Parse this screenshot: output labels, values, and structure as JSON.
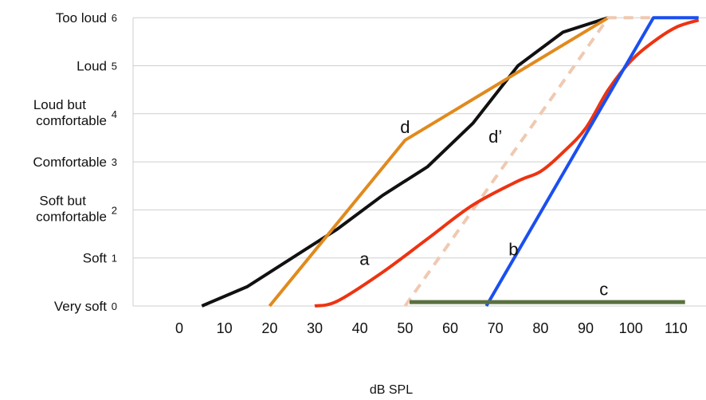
{
  "chart_data": {
    "type": "line",
    "title": "",
    "xlabel": "dB SPL",
    "ylabel": "",
    "xlim": [
      -10,
      115
    ],
    "ylim": [
      0,
      6
    ],
    "x_ticks": [
      "0",
      "10",
      "20",
      "30",
      "40",
      "50",
      "60",
      "70",
      "80",
      "90",
      "100",
      "110"
    ],
    "y_ticks": [
      "0",
      "1",
      "2",
      "3",
      "4",
      "5",
      "6"
    ],
    "y_categories": [
      {
        "value": 0,
        "label": "Very soft"
      },
      {
        "value": 1,
        "label": "Soft"
      },
      {
        "value": 2,
        "label": "Soft but\ncomfortable"
      },
      {
        "value": 3,
        "label": "Comfortable"
      },
      {
        "value": 4,
        "label": "Loud but\ncomfortable"
      },
      {
        "value": 5,
        "label": "Loud"
      },
      {
        "value": 6,
        "label": "Too loud"
      }
    ],
    "grid": true,
    "legend": "none",
    "series": [
      {
        "key": "normal",
        "color": "#111111",
        "dash": false,
        "smooth": false,
        "points": [
          [
            5,
            0
          ],
          [
            15,
            0.4
          ],
          [
            25,
            1
          ],
          [
            35,
            1.6
          ],
          [
            45,
            2.3
          ],
          [
            55,
            2.9
          ],
          [
            65,
            3.8
          ],
          [
            75,
            5
          ],
          [
            85,
            5.7
          ],
          [
            95,
            6
          ]
        ]
      },
      {
        "key": "d",
        "color": "#e08a1e",
        "dash": false,
        "smooth": false,
        "points": [
          [
            20,
            0
          ],
          [
            50,
            3.45
          ],
          [
            95,
            6
          ]
        ]
      },
      {
        "key": "d_prime",
        "color": "#efc9b0",
        "dash": true,
        "smooth": false,
        "points": [
          [
            50,
            0
          ],
          [
            95,
            6
          ],
          [
            105,
            6
          ]
        ]
      },
      {
        "key": "a",
        "color": "#ee3311",
        "dash": false,
        "smooth": true,
        "points": [
          [
            30,
            0
          ],
          [
            35,
            0.1
          ],
          [
            45,
            0.7
          ],
          [
            55,
            1.4
          ],
          [
            65,
            2.1
          ],
          [
            75,
            2.6
          ],
          [
            80,
            2.8
          ],
          [
            85,
            3.2
          ],
          [
            90,
            3.7
          ],
          [
            95,
            4.5
          ],
          [
            100,
            5.1
          ],
          [
            105,
            5.5
          ],
          [
            110,
            5.8
          ],
          [
            115,
            5.95
          ]
        ]
      },
      {
        "key": "b",
        "color": "#1a4ff0",
        "dash": false,
        "smooth": false,
        "points": [
          [
            68,
            0
          ],
          [
            105,
            6
          ],
          [
            115,
            6
          ]
        ]
      },
      {
        "key": "c",
        "color": "#5a7040",
        "dash": false,
        "smooth": false,
        "points": [
          [
            51,
            0.08
          ],
          [
            112,
            0.08
          ]
        ]
      }
    ],
    "annotations": [
      {
        "text": "d",
        "x": 50,
        "y": 3.6
      },
      {
        "text": "d’",
        "x": 70,
        "y": 3.4
      },
      {
        "text": "a",
        "x": 41,
        "y": 0.85
      },
      {
        "text": "b",
        "x": 74,
        "y": 1.05
      },
      {
        "text": "c",
        "x": 94,
        "y": 0.22
      }
    ]
  }
}
